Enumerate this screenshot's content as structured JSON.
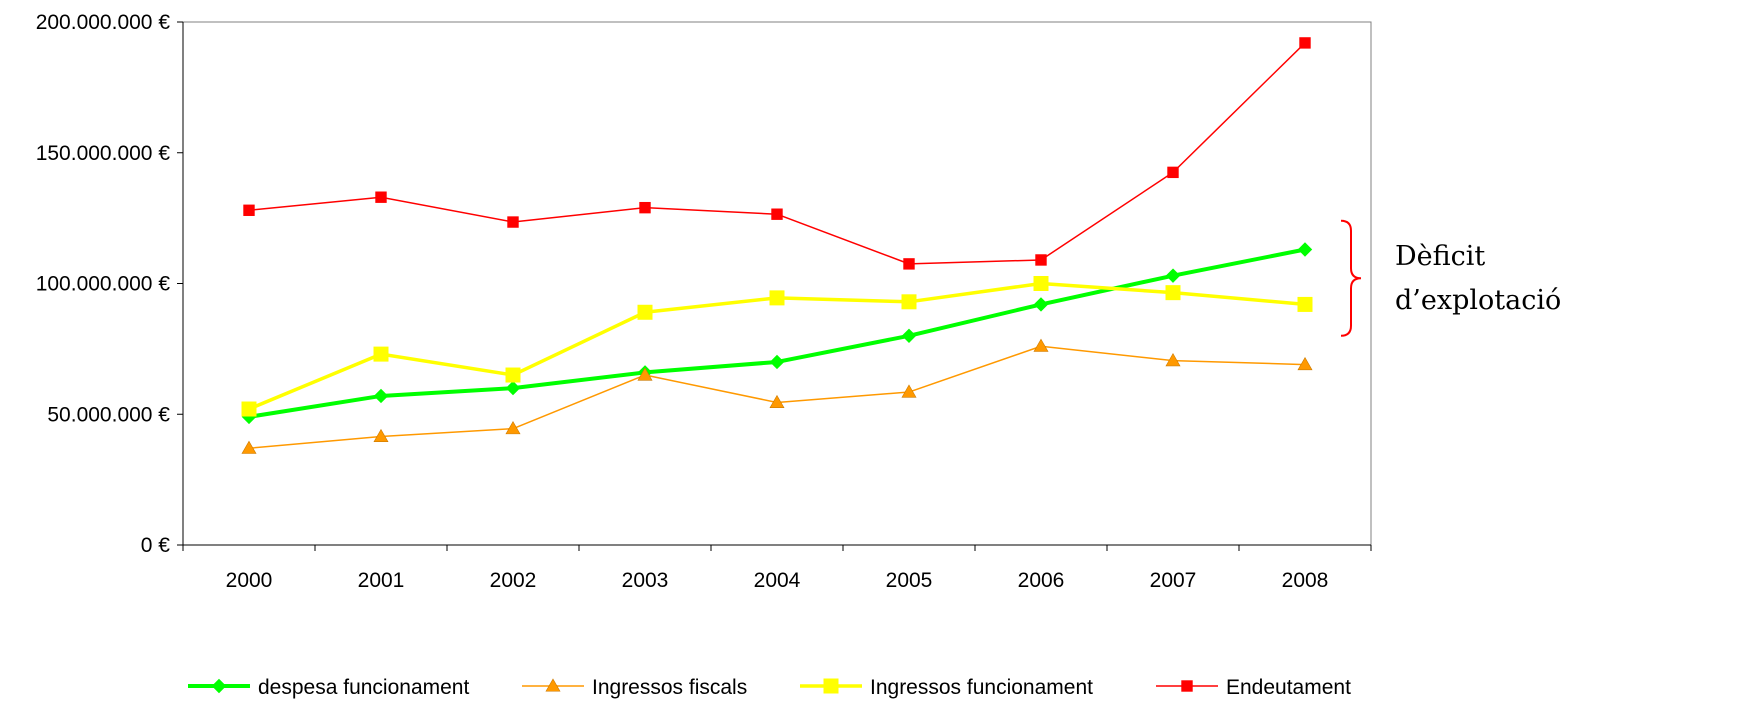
{
  "chart_data": {
    "type": "line",
    "title": "",
    "xlabel": "",
    "ylabel": "",
    "categories": [
      "2000",
      "2001",
      "2002",
      "2003",
      "2004",
      "2005",
      "2006",
      "2007",
      "2008"
    ],
    "ylim": [
      0,
      200000000
    ],
    "y_ticks": [
      0,
      50000000,
      100000000,
      150000000,
      200000000
    ],
    "y_tick_labels": [
      "0 €",
      "50.000.000 €",
      "100.000.000 €",
      "150.000.000 €",
      "200.000.000 €"
    ],
    "grid": false,
    "legend_position": "bottom",
    "series": [
      {
        "name": "despesa funcionament",
        "color": "#00ff00",
        "marker": "diamond",
        "values": [
          49000000,
          57000000,
          60000000,
          66000000,
          70000000,
          80000000,
          92000000,
          103000000,
          113000000
        ]
      },
      {
        "name": "Ingressos fiscals",
        "color": "#ff9900",
        "marker": "triangle",
        "values": [
          37000000,
          41500000,
          44500000,
          65000000,
          54500000,
          58500000,
          76000000,
          70500000,
          69000000
        ]
      },
      {
        "name": "Ingressos funcionament",
        "color": "#ffff00",
        "marker": "square",
        "values": [
          52000000,
          73000000,
          65000000,
          89000000,
          94500000,
          93000000,
          100000000,
          96500000,
          92000000
        ]
      },
      {
        "name": "Endeutament",
        "color": "#ff0000",
        "marker": "square",
        "values": [
          128000000,
          133000000,
          123500000,
          129000000,
          126500000,
          107500000,
          109000000,
          142500000,
          192000000
        ]
      }
    ],
    "annotations": [
      {
        "text_lines": [
          "Dèficit",
          "d’explotació"
        ],
        "bracket_from": 80000000,
        "bracket_to": 124000000,
        "color": "#ff0000"
      }
    ]
  }
}
